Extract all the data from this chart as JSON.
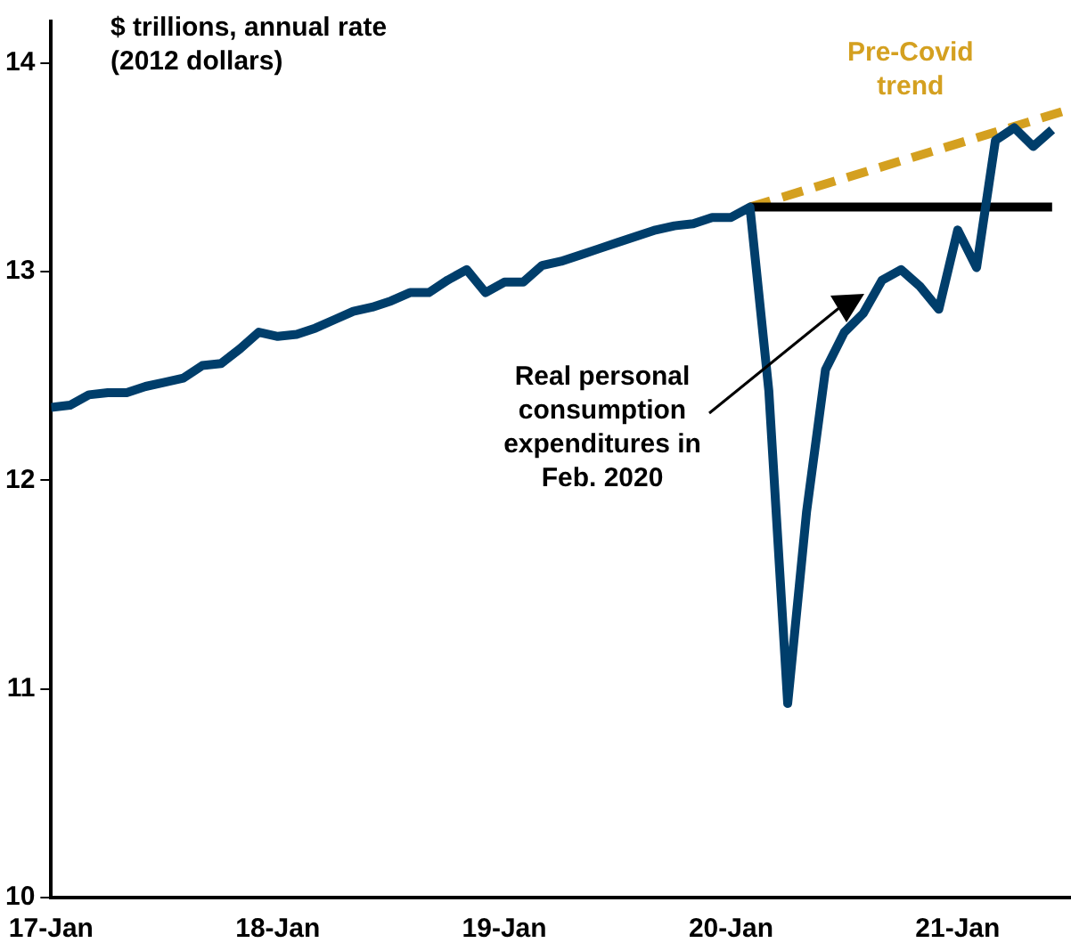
{
  "chart_data": {
    "type": "line",
    "ylabel": "$ trillions, annual rate (2012 dollars)",
    "annotations": [
      "Real personal consumption expenditures in Feb. 2020"
    ],
    "x": [
      "2017-01",
      "2017-02",
      "2017-03",
      "2017-04",
      "2017-05",
      "2017-06",
      "2017-07",
      "2017-08",
      "2017-09",
      "2017-10",
      "2017-11",
      "2017-12",
      "2018-01",
      "2018-02",
      "2018-03",
      "2018-04",
      "2018-05",
      "2018-06",
      "2018-07",
      "2018-08",
      "2018-09",
      "2018-10",
      "2018-11",
      "2018-12",
      "2019-01",
      "2019-02",
      "2019-03",
      "2019-04",
      "2019-05",
      "2019-06",
      "2019-07",
      "2019-08",
      "2019-09",
      "2019-10",
      "2019-11",
      "2019-12",
      "2020-01",
      "2020-02",
      "2020-03",
      "2020-04",
      "2020-05",
      "2020-06",
      "2020-07",
      "2020-08",
      "2020-09",
      "2020-10",
      "2020-11",
      "2020-12",
      "2021-01",
      "2021-02",
      "2021-03",
      "2021-04",
      "2021-05",
      "2021-06"
    ],
    "series": [
      {
        "color": "#003e6b",
        "values": [
          12.35,
          12.36,
          12.41,
          12.42,
          12.42,
          12.45,
          12.47,
          12.49,
          12.55,
          12.56,
          12.63,
          12.71,
          12.69,
          12.7,
          12.73,
          12.77,
          12.81,
          12.83,
          12.86,
          12.9,
          12.9,
          12.96,
          13.01,
          12.9,
          12.95,
          12.95,
          13.03,
          13.05,
          13.08,
          13.11,
          13.14,
          13.17,
          13.2,
          13.22,
          13.23,
          13.26,
          13.26,
          13.31,
          12.43,
          10.93,
          11.85,
          12.53,
          12.71,
          12.8,
          12.96,
          13.01,
          12.93,
          12.82,
          13.2,
          13.02,
          13.63,
          13.69,
          13.6,
          13.68
        ]
      },
      {
        "color": "#000000",
        "x": [
          "2020-02",
          "2021-06"
        ],
        "values": [
          13.31,
          13.31
        ]
      },
      {
        "name": "Pre-Covid trend",
        "color": "#d4a020",
        "line_style": "dashed",
        "x": [
          "2020-02",
          "2021-07"
        ],
        "values": [
          13.31,
          13.78
        ]
      }
    ],
    "xlim": [
      "2017-01",
      "2021-07"
    ],
    "xticks": [
      {
        "value": "2017-01",
        "label": "17-Jan"
      },
      {
        "value": "2018-01",
        "label": "18-Jan"
      },
      {
        "value": "2019-01",
        "label": "19-Jan"
      },
      {
        "value": "2020-01",
        "label": "20-Jan"
      },
      {
        "value": "2021-01",
        "label": "21-Jan"
      }
    ],
    "ylim": [
      10,
      14.2
    ],
    "yticks": [
      10,
      11,
      12,
      13,
      14
    ],
    "grid": false,
    "legend": false,
    "marker": "none",
    "line_style": "solid"
  }
}
